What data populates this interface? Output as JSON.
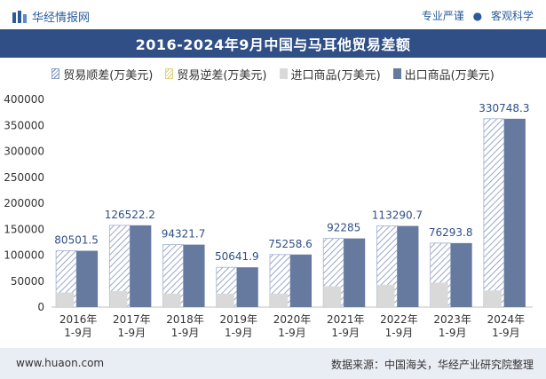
{
  "header": {
    "brand": "华经情报网",
    "tagline_left": "专业严谨",
    "tagline_sep": "●",
    "tagline_right": "客观科学"
  },
  "footer": {
    "url": "www.huaon.com",
    "source": "数据来源：中国海关，华经产业研究院整理"
  },
  "colors": {
    "title_bg": "#2f4f86",
    "export": "#66799f",
    "import": "#d9d9d9",
    "surplus_hatch": "#6e86b3",
    "footer_bg": "#e9edf4"
  },
  "chart_data": {
    "type": "bar",
    "title": "2016-2024年9月中国与马耳他贸易差额",
    "xlabel": "",
    "ylabel": "",
    "ylim": [
      0,
      400000
    ],
    "yticks": [
      0,
      50000,
      100000,
      150000,
      200000,
      250000,
      300000,
      350000,
      400000
    ],
    "categories": [
      "2016年\n1-9月",
      "2017年\n1-9月",
      "2018年\n1-9月",
      "2019年\n1-9月",
      "2020年\n1-9月",
      "2021年\n1-9月",
      "2022年\n1-9月",
      "2023年\n1-9月",
      "2024年\n1-9月"
    ],
    "legend": [
      "贸易顺差(万美元)",
      "贸易逆差(万美元)",
      "进口商品(万美元)",
      "出口商品(万美元)"
    ],
    "series": [
      {
        "name": "贸易顺差(万美元)",
        "values": [
          80501.5,
          126522.2,
          94321.7,
          50641.9,
          75258.6,
          92285,
          113290.7,
          76293.8,
          330748.3
        ]
      },
      {
        "name": "贸易逆差(万美元)",
        "values": [
          0,
          0,
          0,
          0,
          0,
          0,
          0,
          0,
          0
        ]
      },
      {
        "name": "进口商品(万美元)",
        "values": [
          28000,
          31000,
          26000,
          26000,
          26000,
          40000,
          43000,
          47000,
          32000
        ]
      },
      {
        "name": "出口商品(万美元)",
        "values": [
          108501.5,
          157522.2,
          120321.7,
          76641.9,
          101258.6,
          132285,
          156290.7,
          123293.8,
          362748.3
        ]
      }
    ],
    "data_labels": [
      "80501.5",
      "126522.2",
      "94321.7",
      "50641.9",
      "75258.6",
      "92285",
      "113290.7",
      "76293.8",
      "330748.3"
    ]
  }
}
